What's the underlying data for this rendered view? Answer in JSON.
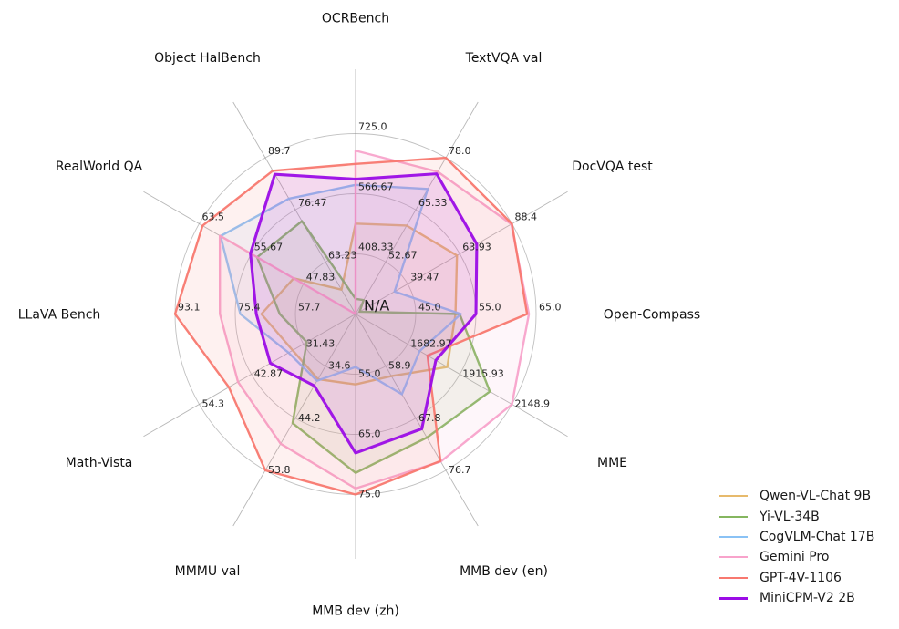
{
  "chart_data": {
    "type": "radar",
    "title": "",
    "center_label": "N/A",
    "grid": {
      "rings": 3,
      "ring_fracs": [
        0.3333,
        0.6667,
        1.0
      ],
      "circular": true
    },
    "legend_position": "lower right",
    "axes": [
      {
        "label": "OCRBench",
        "min": 250,
        "ticks": [
          "408.33",
          "566.67",
          "725.0"
        ],
        "max": 725.0
      },
      {
        "label": "TextVQA val",
        "min": 40,
        "ticks": [
          "52.67",
          "65.33",
          "78.0"
        ],
        "max": 78.0
      },
      {
        "label": "DocVQA test",
        "min": 15,
        "ticks": [
          "39.47",
          "63.93",
          "88.4"
        ],
        "max": 88.4
      },
      {
        "label": "Open-Compass",
        "min": 35,
        "ticks": [
          "45.0",
          "55.0",
          "65.0"
        ],
        "max": 65.0
      },
      {
        "label": "MME",
        "min": 1450,
        "ticks": [
          "1682.97",
          "1915.93",
          "2148.9"
        ],
        "max": 2148.9
      },
      {
        "label": "MMB dev (en)",
        "min": 50,
        "ticks": [
          "58.9",
          "67.8",
          "76.7"
        ],
        "max": 76.7
      },
      {
        "label": "MMB dev (zh)",
        "min": 45,
        "ticks": [
          "55.0",
          "65.0",
          "75.0"
        ],
        "max": 75.0
      },
      {
        "label": "MMMU val",
        "min": 25,
        "ticks": [
          "34.6",
          "44.2",
          "53.8"
        ],
        "max": 53.8
      },
      {
        "label": "Math-Vista",
        "min": 20,
        "ticks": [
          "31.43",
          "42.87",
          "54.3"
        ],
        "max": 54.3
      },
      {
        "label": "LLaVA Bench",
        "min": 40,
        "ticks": [
          "57.7",
          "75.4",
          "93.1"
        ],
        "max": 93.1
      },
      {
        "label": "RealWorld QA",
        "min": 40,
        "ticks": [
          "47.83",
          "55.67",
          "63.5"
        ],
        "max": 63.5
      },
      {
        "label": "Object HalBench",
        "min": 50,
        "ticks": [
          "63.23",
          "76.47",
          "89.7"
        ],
        "max": 89.7
      }
    ],
    "series": [
      {
        "name": "Qwen-VL-Chat 9B",
        "color": "#e7ba6c",
        "line_width": 2.4,
        "values": [
          488,
          61.5,
          62.6,
          51.6,
          1860.0,
          60.6,
          56.7,
          37.0,
          33.8,
          67.7,
          49.3,
          56.2
        ]
      },
      {
        "name": "Yi-VL-34B",
        "color": "#85b65f",
        "line_width": 2.4,
        "values": [
          290,
          43.4,
          16.9,
          52.3,
          2050.2,
          71.1,
          71.4,
          45.1,
          30.7,
          62.3,
          54.8,
          73.6
        ]
      },
      {
        "name": "CogVLM-Chat 17B",
        "color": "#8ac2f5",
        "line_width": 2.4,
        "values": [
          590,
          70.4,
          33.3,
          52.5,
          1736.6,
          63.7,
          53.8,
          37.3,
          34.7,
          73.9,
          60.3,
          79.3
        ]
      },
      {
        "name": "Gemini Pro",
        "color": "#f8a3cb",
        "line_width": 2.4,
        "values": [
          680,
          74.6,
          88.1,
          63.8,
          2148.9,
          75.2,
          74.0,
          48.9,
          45.8,
          79.9,
          60.4,
          null
        ]
      },
      {
        "name": "GPT-4V-1106",
        "color": "#f8786f",
        "line_width": 2.4,
        "values": [
          645,
          78.0,
          88.4,
          63.5,
          1771.5,
          75.1,
          75.0,
          53.8,
          47.8,
          93.1,
          63.0,
          86.4
        ]
      },
      {
        "name": "MiniCPM-V2 2B",
        "color": "#9b0ce6",
        "line_width": 3.1,
        "values": [
          605,
          74.1,
          71.9,
          55.0,
          1808.6,
          69.6,
          68.1,
          38.2,
          38.7,
          69.2,
          55.8,
          85.5
        ]
      }
    ],
    "style": {
      "fill_opacity": 0.1,
      "ring_color": "#b5b5b5",
      "spoke_color": "#909090",
      "background": "#ffffff"
    }
  }
}
